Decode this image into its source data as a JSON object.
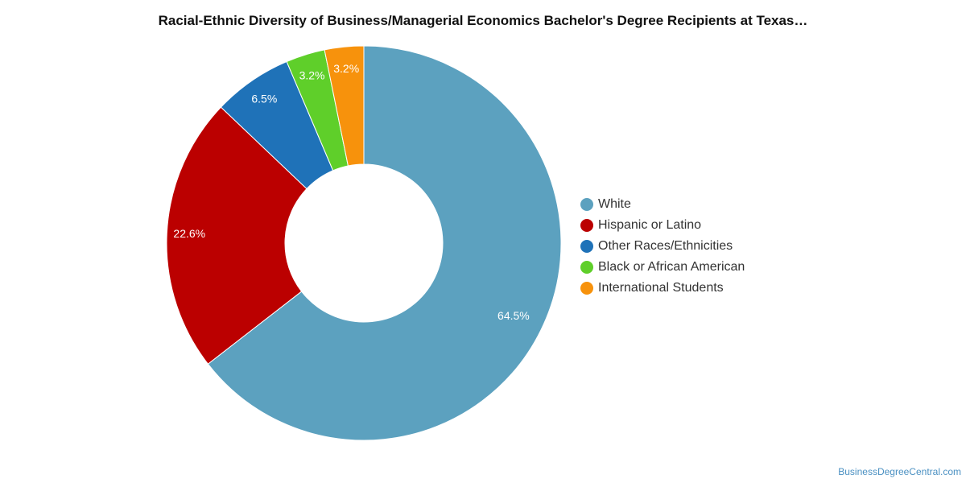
{
  "chart_data": {
    "type": "pie",
    "donut": true,
    "title": "Racial-Ethnic Diversity of Business/Managerial Economics Bachelor's Degree Recipients at Texas…",
    "legend_position": "right",
    "slices": [
      {
        "label": "White",
        "value": 64.5,
        "value_label": "64.5%",
        "color": "#5ca1bf"
      },
      {
        "label": "Hispanic or Latino",
        "value": 22.6,
        "value_label": "22.6%",
        "color": "#bb0000"
      },
      {
        "label": "Other Races/Ethnicities",
        "value": 6.5,
        "value_label": "6.5%",
        "color": "#1f72b8"
      },
      {
        "label": "Black or African American",
        "value": 3.2,
        "value_label": "3.2%",
        "color": "#5fcf2a"
      },
      {
        "label": "International Students",
        "value": 3.2,
        "value_label": "3.2%",
        "color": "#f7920c"
      }
    ]
  },
  "watermark": "BusinessDegreeCentral.com"
}
